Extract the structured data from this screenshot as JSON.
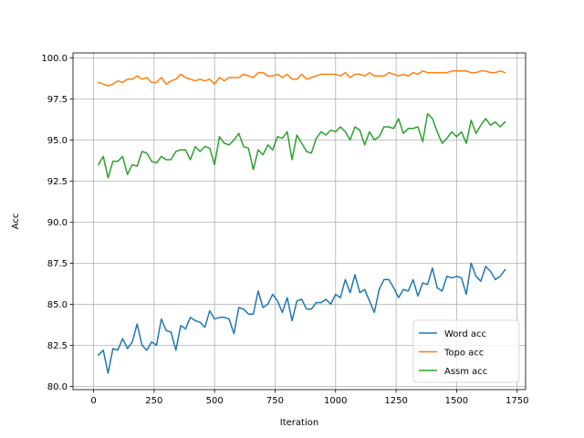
{
  "chart_data": {
    "type": "line",
    "title": "",
    "xlabel": "Iteration",
    "ylabel": "Acc",
    "xlim": [
      -85,
      1785
    ],
    "ylim": [
      79.8,
      100.3
    ],
    "xticks": [
      0,
      250,
      500,
      750,
      1000,
      1250,
      1500,
      1750
    ],
    "yticks": [
      80.0,
      82.5,
      85.0,
      87.5,
      90.0,
      92.5,
      95.0,
      97.5,
      100.0
    ],
    "xtick_labels": [
      "0",
      "250",
      "500",
      "750",
      "1000",
      "1250",
      "1500",
      "1750"
    ],
    "ytick_labels": [
      "80.0",
      "82.5",
      "85.0",
      "87.5",
      "90.0",
      "92.5",
      "95.0",
      "97.5",
      "100.0"
    ],
    "grid": true,
    "legend_position": "bottom-right",
    "x": [
      20,
      40,
      60,
      80,
      100,
      120,
      140,
      160,
      180,
      200,
      220,
      240,
      260,
      280,
      300,
      320,
      340,
      360,
      380,
      400,
      420,
      440,
      460,
      480,
      500,
      520,
      540,
      560,
      580,
      600,
      620,
      640,
      660,
      680,
      700,
      720,
      740,
      760,
      780,
      800,
      820,
      840,
      860,
      880,
      900,
      920,
      940,
      960,
      980,
      1000,
      1020,
      1040,
      1060,
      1080,
      1100,
      1120,
      1140,
      1160,
      1180,
      1200,
      1220,
      1240,
      1260,
      1280,
      1300,
      1320,
      1340,
      1360,
      1380,
      1400,
      1420,
      1440,
      1460,
      1480,
      1500,
      1520,
      1540,
      1560,
      1580,
      1600,
      1620,
      1640,
      1660,
      1680,
      1700
    ],
    "series": [
      {
        "name": "Word acc",
        "color": "#1f77b4",
        "values": [
          81.9,
          82.2,
          80.8,
          82.3,
          82.2,
          82.9,
          82.3,
          82.7,
          83.8,
          82.5,
          82.2,
          82.7,
          82.5,
          84.1,
          83.4,
          83.3,
          82.2,
          83.7,
          83.5,
          84.2,
          84.0,
          83.9,
          83.6,
          84.6,
          84.1,
          84.2,
          84.2,
          84.1,
          83.2,
          84.8,
          84.7,
          84.4,
          84.4,
          85.8,
          84.8,
          85.0,
          85.6,
          85.2,
          84.5,
          85.4,
          84.0,
          85.2,
          85.3,
          84.7,
          84.7,
          85.1,
          85.1,
          85.3,
          85.0,
          85.6,
          85.4,
          86.5,
          85.7,
          86.8,
          85.7,
          85.9,
          85.2,
          84.5,
          85.9,
          86.5,
          86.5,
          86.0,
          85.4,
          85.9,
          85.8,
          86.5,
          85.5,
          86.3,
          86.2,
          87.2,
          86.0,
          85.8,
          86.7,
          86.6,
          86.7,
          86.6,
          85.6,
          87.5,
          86.7,
          86.4,
          87.3,
          87.0,
          86.5,
          86.7,
          87.1
        ]
      },
      {
        "name": "Topo acc",
        "color": "#ff7f0e",
        "values": [
          98.5,
          98.4,
          98.3,
          98.4,
          98.6,
          98.5,
          98.7,
          98.7,
          98.9,
          98.7,
          98.8,
          98.5,
          98.5,
          98.8,
          98.4,
          98.6,
          98.7,
          99.0,
          98.8,
          98.7,
          98.6,
          98.7,
          98.6,
          98.7,
          98.4,
          98.8,
          98.6,
          98.8,
          98.8,
          98.8,
          99.0,
          98.9,
          98.8,
          99.1,
          99.1,
          98.9,
          98.9,
          99.0,
          98.8,
          99.0,
          98.7,
          98.7,
          99.0,
          98.7,
          98.8,
          98.9,
          99.0,
          99.0,
          99.0,
          99.0,
          98.9,
          99.1,
          98.8,
          99.0,
          99.0,
          98.9,
          99.1,
          98.9,
          98.9,
          98.9,
          99.1,
          99.0,
          98.9,
          99.0,
          98.9,
          99.1,
          99.0,
          99.2,
          99.1,
          99.1,
          99.1,
          99.1,
          99.1,
          99.2,
          99.2,
          99.2,
          99.2,
          99.1,
          99.1,
          99.2,
          99.2,
          99.1,
          99.1,
          99.2,
          99.1
        ]
      },
      {
        "name": "Assm acc",
        "color": "#2ca02c",
        "values": [
          93.5,
          94.0,
          92.7,
          93.7,
          93.7,
          94.0,
          92.9,
          93.5,
          93.4,
          94.3,
          94.2,
          93.7,
          93.6,
          94.0,
          93.8,
          93.8,
          94.3,
          94.4,
          94.4,
          93.8,
          94.6,
          94.3,
          94.6,
          94.5,
          93.5,
          95.2,
          94.8,
          94.7,
          95.0,
          95.4,
          94.6,
          94.5,
          93.2,
          94.4,
          94.1,
          94.7,
          94.4,
          95.2,
          95.1,
          95.5,
          93.8,
          95.3,
          94.8,
          94.3,
          94.2,
          95.1,
          95.5,
          95.3,
          95.6,
          95.5,
          95.8,
          95.5,
          95.0,
          95.8,
          95.6,
          94.7,
          95.5,
          95.0,
          95.2,
          95.8,
          95.8,
          95.7,
          96.3,
          95.4,
          95.7,
          95.7,
          95.8,
          94.9,
          96.6,
          96.3,
          95.5,
          94.8,
          95.1,
          95.5,
          95.2,
          95.5,
          94.8,
          96.2,
          95.4,
          95.9,
          96.3,
          95.9,
          96.1,
          95.8,
          96.1
        ]
      }
    ]
  }
}
